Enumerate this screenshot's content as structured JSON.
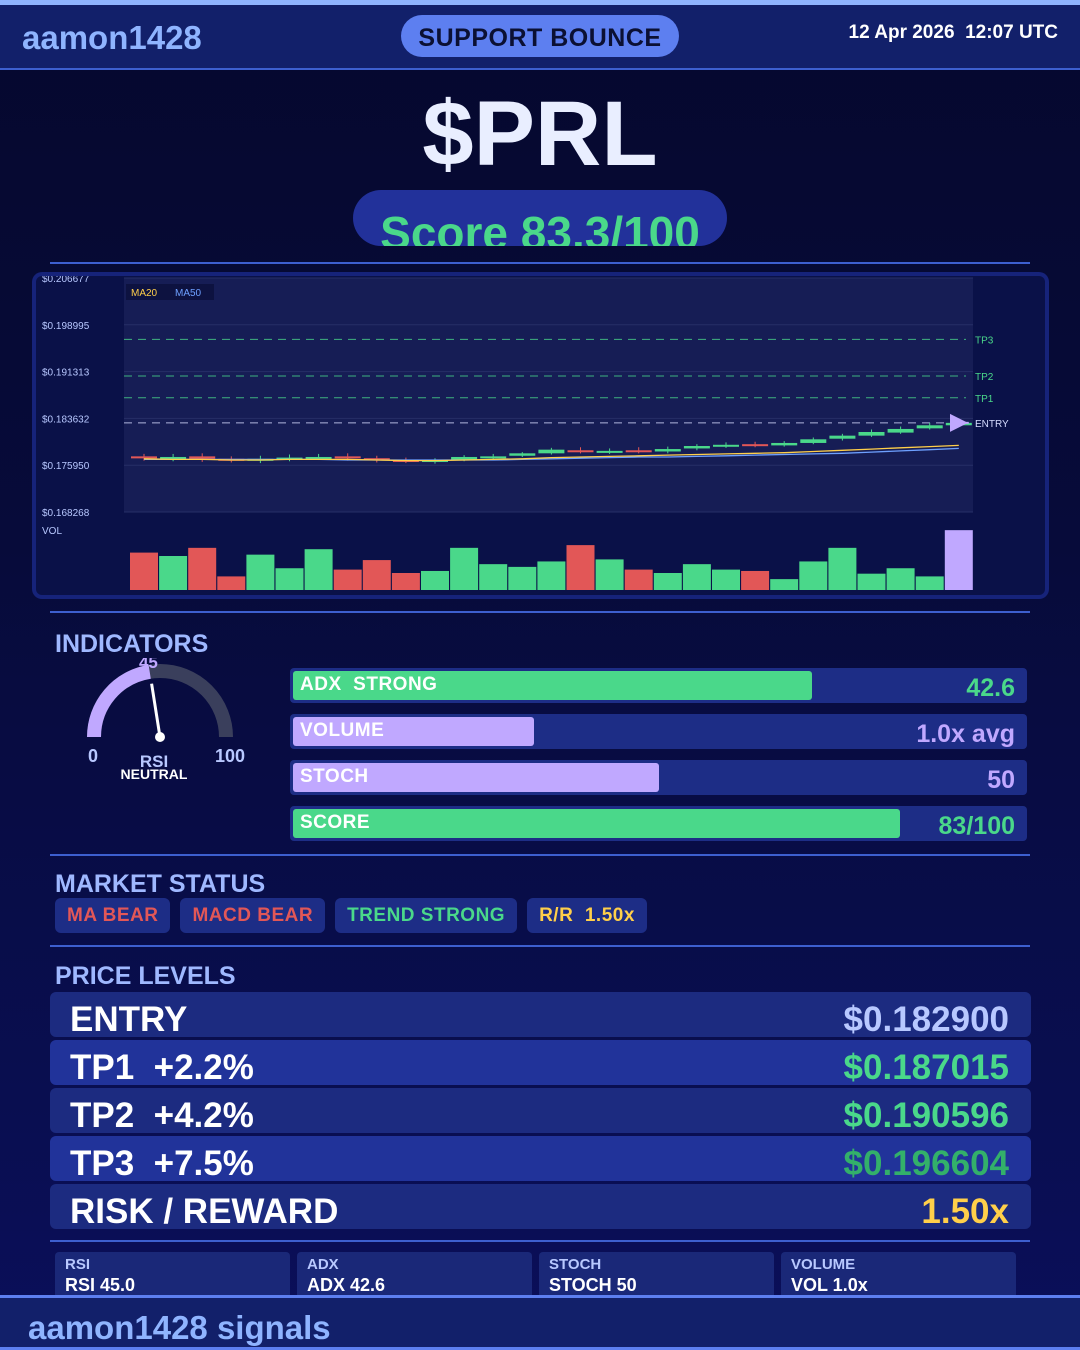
{
  "header": {
    "brand": "aamon1428",
    "signal_type": "SUPPORT BOUNCE",
    "datetime": "12 Apr 2026  12:07 UTC"
  },
  "ticker": "$PRL",
  "score_label": "Score 83.3/100",
  "chart_data": {
    "type": "candlestick",
    "y_ticks": [
      "$0.206677",
      "$0.198995",
      "$0.191313",
      "$0.183632",
      "$0.175950",
      "$0.168268"
    ],
    "ylim": [
      0.168268,
      0.206677
    ],
    "legend": [
      "MA20",
      "MA50"
    ],
    "level_labels": [
      "TP3",
      "TP2",
      "TP1",
      "ENTRY"
    ],
    "levels": {
      "TP3": 0.196604,
      "TP2": 0.190596,
      "TP1": 0.187015,
      "ENTRY": 0.1829
    },
    "volume_label": "VOL",
    "candles": [
      {
        "o": 0.1774,
        "c": 0.1772,
        "h": 0.1778,
        "l": 0.1767
      },
      {
        "o": 0.1771,
        "c": 0.1773,
        "h": 0.1778,
        "l": 0.1766
      },
      {
        "o": 0.1774,
        "c": 0.177,
        "h": 0.1779,
        "l": 0.1765
      },
      {
        "o": 0.177,
        "c": 0.1768,
        "h": 0.1774,
        "l": 0.1764
      },
      {
        "o": 0.1768,
        "c": 0.177,
        "h": 0.1775,
        "l": 0.1763
      },
      {
        "o": 0.177,
        "c": 0.1772,
        "h": 0.1777,
        "l": 0.1766
      },
      {
        "o": 0.1771,
        "c": 0.1773,
        "h": 0.1778,
        "l": 0.1768
      },
      {
        "o": 0.1774,
        "c": 0.1771,
        "h": 0.1779,
        "l": 0.1767
      },
      {
        "o": 0.1771,
        "c": 0.1768,
        "h": 0.1775,
        "l": 0.1764
      },
      {
        "o": 0.1768,
        "c": 0.1766,
        "h": 0.1772,
        "l": 0.1763
      },
      {
        "o": 0.1767,
        "c": 0.1768,
        "h": 0.1771,
        "l": 0.1762
      },
      {
        "o": 0.1768,
        "c": 0.1773,
        "h": 0.1776,
        "l": 0.1766
      },
      {
        "o": 0.1772,
        "c": 0.1774,
        "h": 0.1778,
        "l": 0.1769
      },
      {
        "o": 0.1775,
        "c": 0.1779,
        "h": 0.1781,
        "l": 0.1773
      },
      {
        "o": 0.1779,
        "c": 0.1785,
        "h": 0.1788,
        "l": 0.1777
      },
      {
        "o": 0.1784,
        "c": 0.1782,
        "h": 0.1789,
        "l": 0.1779
      },
      {
        "o": 0.1781,
        "c": 0.1783,
        "h": 0.1787,
        "l": 0.1778
      },
      {
        "o": 0.1784,
        "c": 0.1782,
        "h": 0.1789,
        "l": 0.1779
      },
      {
        "o": 0.1782,
        "c": 0.1786,
        "h": 0.179,
        "l": 0.1779
      },
      {
        "o": 0.1787,
        "c": 0.1791,
        "h": 0.1794,
        "l": 0.1784
      },
      {
        "o": 0.1791,
        "c": 0.1793,
        "h": 0.1797,
        "l": 0.1788
      },
      {
        "o": 0.1794,
        "c": 0.1792,
        "h": 0.1798,
        "l": 0.1789
      },
      {
        "o": 0.1792,
        "c": 0.1796,
        "h": 0.1799,
        "l": 0.179
      },
      {
        "o": 0.1796,
        "c": 0.1802,
        "h": 0.1805,
        "l": 0.1794
      },
      {
        "o": 0.1803,
        "c": 0.1808,
        "h": 0.1811,
        "l": 0.18
      },
      {
        "o": 0.1808,
        "c": 0.1814,
        "h": 0.1818,
        "l": 0.1806
      },
      {
        "o": 0.1813,
        "c": 0.1819,
        "h": 0.1823,
        "l": 0.1811
      },
      {
        "o": 0.182,
        "c": 0.1825,
        "h": 0.1829,
        "l": 0.1818
      },
      {
        "o": 0.1825,
        "c": 0.1829,
        "h": 0.1834,
        "l": 0.1823
      }
    ],
    "ma20": [
      0.177,
      0.1769,
      0.1769,
      0.1768,
      0.1768,
      0.1769,
      0.1769,
      0.1769,
      0.1768,
      0.1767,
      0.1767,
      0.1768,
      0.1769,
      0.177,
      0.1772,
      0.1773,
      0.1774,
      0.1775,
      0.1776,
      0.1777,
      0.1778,
      0.1779,
      0.178,
      0.1782,
      0.1784,
      0.1786,
      0.1788,
      0.179,
      0.1792
    ],
    "ma50": [
      0.1769,
      0.1769,
      0.1769,
      0.1769,
      0.1769,
      0.1769,
      0.1769,
      0.1768,
      0.1768,
      0.1768,
      0.1768,
      0.1768,
      0.1768,
      0.1769,
      0.177,
      0.1771,
      0.1772,
      0.1773,
      0.1773,
      0.1774,
      0.1775,
      0.1776,
      0.1777,
      0.1778,
      0.1779,
      0.1781,
      0.1783,
      0.1785,
      0.1787
    ],
    "volume": [
      0.55,
      0.5,
      0.62,
      0.2,
      0.52,
      0.32,
      0.6,
      0.3,
      0.44,
      0.25,
      0.28,
      0.62,
      0.38,
      0.34,
      0.42,
      0.66,
      0.45,
      0.3,
      0.25,
      0.38,
      0.3,
      0.28,
      0.16,
      0.42,
      0.62,
      0.24,
      0.32,
      0.2,
      0.88
    ],
    "volume_up": [
      false,
      true,
      false,
      false,
      true,
      true,
      true,
      false,
      false,
      false,
      true,
      true,
      true,
      true,
      true,
      false,
      true,
      false,
      true,
      true,
      true,
      false,
      true,
      true,
      true,
      true,
      true,
      true,
      true
    ]
  },
  "indicators": {
    "title": "INDICATORS",
    "rsi": {
      "value": "45",
      "label": "RSI",
      "state": "NEUTRAL",
      "min": "0",
      "max": "100",
      "level": 45
    },
    "bars": [
      {
        "label": "ADX  STRONG",
        "value": "42.6",
        "fraction": 0.71,
        "color": "#4ad88a",
        "value_color": "#4ad88a"
      },
      {
        "label": "VOLUME",
        "value": "1.0x avg",
        "fraction": 0.33,
        "color": "#c0a8ff",
        "value_color": "#c0a8ff"
      },
      {
        "label": "STOCH",
        "value": "50",
        "fraction": 0.5,
        "color": "#c0a8ff",
        "value_color": "#c0a8ff"
      },
      {
        "label": "SCORE",
        "value": "83/100",
        "fraction": 0.83,
        "color": "#4ad88a",
        "value_color": "#4ad88a"
      }
    ]
  },
  "market_status": {
    "title": "MARKET STATUS",
    "badges": [
      {
        "label": "MA BEAR",
        "color": "#e25757"
      },
      {
        "label": "MACD BEAR",
        "color": "#e25757"
      },
      {
        "label": "TREND STRONG",
        "color": "#4ad88a"
      },
      {
        "label": "R/R  1.50x",
        "color": "#ffcf4a"
      }
    ]
  },
  "price_levels": {
    "title": "PRICE LEVELS",
    "rows": [
      {
        "name": "ENTRY",
        "price": "$0.182900",
        "price_color": "#b8c8ff",
        "bg": "#1c2b80"
      },
      {
        "name": "TP1  +2.2%",
        "price": "$0.187015",
        "price_color": "#4ad88a",
        "bg": "#21339a"
      },
      {
        "name": "TP2  +4.2%",
        "price": "$0.190596",
        "price_color": "#4ad88a",
        "bg": "#1c2b80"
      },
      {
        "name": "TP3  +7.5%",
        "price": "$0.196604",
        "price_color": "#33b06a",
        "bg": "#21339a"
      },
      {
        "name": "RISK / REWARD",
        "price": "1.50x",
        "price_color": "#ffcf4a",
        "bg": "#1c2b80"
      }
    ]
  },
  "mini_stats": [
    {
      "title": "RSI",
      "value": "RSI 45.0"
    },
    {
      "title": "ADX",
      "value": "ADX 42.6"
    },
    {
      "title": "STOCH",
      "value": "STOCH 50"
    },
    {
      "title": "VOLUME",
      "value": "VOL 1.0x"
    }
  ],
  "footer": {
    "text": "aamon1428 signals"
  },
  "colors": {
    "up": "#4ad88a",
    "down": "#e25757",
    "accent": "#5d7ff0",
    "last_volume": "#c0a8ff"
  }
}
